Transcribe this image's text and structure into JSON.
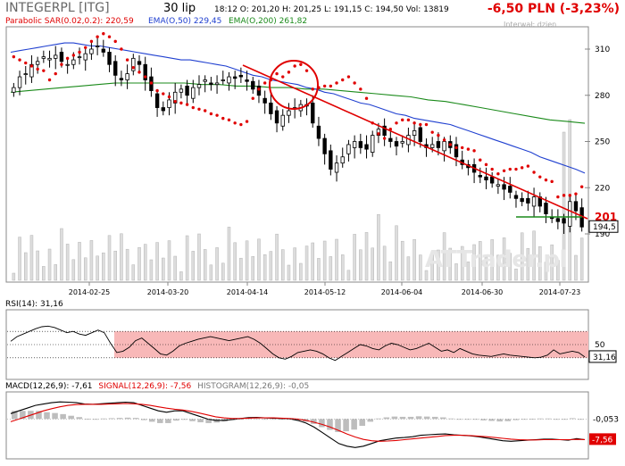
{
  "header": {
    "title": "INTEGERPL [ITG]",
    "date": "30 lip",
    "quote": "18:12  O: 201,20  H: 201,25  L: 191,15  C: 194,50  Vol: 13819",
    "change": "-6,50 PLN (-3,23%)"
  },
  "legend": {
    "sar": "Parabolic SAR(0.02,0.2): 220,59",
    "ema50": "EMA(O,50) 229,45",
    "ema200": "EMA(O,200) 261,82"
  },
  "interval_label": "Interwał: dzien",
  "watermark": "ATTrader.pl",
  "colors": {
    "price_candle": "#000000",
    "volume": "#b4b4b4",
    "sar": "#e00000",
    "ema50": "#2040d0",
    "ema200": "#1a8a1a",
    "trendline": "#e00000",
    "support": "#1a8a1a",
    "rsi_band": "#f8b8b8",
    "macd_signal": "#e00000",
    "macd_hist": "#bdbdbd"
  },
  "chart_data": [
    {
      "type": "candlestick",
      "title": "INTEGERPL [ITG]",
      "x_tick_labels": [
        "2014-02-25",
        "2014-03-20",
        "2014-04-14",
        "2014-05-12",
        "2014-06-04",
        "2014-06-30",
        "2014-07-23"
      ],
      "y_tick_labels": [
        "310",
        "280",
        "250",
        "220",
        "190"
      ],
      "ylim": [
        190,
        320
      ],
      "last_price_label": "194,5",
      "support_label": "201",
      "support_level": 201,
      "close": [
        285,
        292,
        294,
        300,
        302,
        305,
        304,
        306,
        302,
        300,
        303,
        305,
        307,
        310,
        312,
        308,
        300,
        293,
        290,
        294,
        304,
        300,
        290,
        283,
        272,
        270,
        277,
        282,
        284,
        280,
        285,
        287,
        290,
        287,
        288,
        290,
        292,
        291,
        292,
        289,
        284,
        280,
        275,
        268,
        262,
        267,
        270,
        272,
        274,
        273,
        262,
        252,
        242,
        232,
        236,
        240,
        248,
        250,
        246,
        245,
        254,
        258,
        254,
        250,
        247,
        250,
        254,
        257,
        250,
        246,
        248,
        246,
        250,
        246,
        240,
        235,
        233,
        230,
        227,
        225,
        223,
        222,
        219,
        217,
        213,
        211,
        210,
        214,
        208,
        203,
        200,
        198,
        197,
        211,
        205,
        194.5
      ],
      "sar": [
        305,
        303,
        301,
        299,
        297,
        296,
        290,
        294,
        300,
        304,
        306,
        308,
        311,
        315,
        318,
        320,
        318,
        315,
        310,
        303,
        298,
        295,
        292,
        288,
        283,
        281,
        279,
        276,
        275,
        274,
        272,
        271,
        270,
        268,
        267,
        265,
        264,
        262,
        261,
        263,
        278,
        284,
        288,
        290,
        294,
        292,
        295,
        299,
        300,
        296,
        284,
        285,
        286,
        286,
        288,
        290,
        292,
        288,
        284,
        278,
        262,
        255,
        252,
        258,
        262,
        264,
        264,
        262,
        261,
        261,
        256,
        254,
        251,
        248,
        246,
        246,
        245,
        244,
        238,
        235,
        232,
        229,
        231,
        232,
        232,
        233,
        234,
        230,
        227,
        225,
        224,
        214,
        215,
        215,
        216,
        220.59
      ],
      "ema50": [
        308,
        309,
        310,
        311,
        312,
        313,
        314,
        314,
        313,
        312,
        312,
        311,
        310,
        309,
        308,
        307,
        306,
        305,
        304,
        303,
        303,
        302,
        301,
        300,
        299,
        297,
        295,
        293,
        292,
        290,
        289,
        288,
        287,
        285,
        284,
        282,
        281,
        279,
        277,
        275,
        274,
        272,
        270,
        268,
        267,
        265,
        264,
        263,
        262,
        261,
        259,
        257,
        255,
        253,
        251,
        249,
        247,
        245,
        243,
        240,
        238,
        236,
        234,
        232,
        229.45
      ],
      "ema200": [
        282,
        283,
        284,
        285,
        286,
        287,
        288,
        288,
        288,
        288,
        288,
        287,
        287,
        286,
        286,
        285,
        285,
        284,
        284,
        283,
        282,
        281,
        280,
        279,
        277,
        276,
        274,
        272,
        270,
        268,
        266,
        264,
        263,
        261.82
      ],
      "volume_max": 29000
    },
    {
      "type": "line",
      "title": "RSI(14): 31,16",
      "y_tick_labels": [
        "50"
      ],
      "last_value_label": "31,16",
      "ylim": [
        0,
        100
      ],
      "band": [
        30,
        70
      ],
      "values": [
        55,
        62,
        66,
        70,
        74,
        77,
        78,
        76,
        72,
        68,
        70,
        66,
        64,
        68,
        72,
        68,
        52,
        38,
        40,
        46,
        56,
        60,
        52,
        44,
        36,
        34,
        40,
        48,
        52,
        55,
        58,
        60,
        62,
        60,
        58,
        56,
        58,
        60,
        62,
        58,
        52,
        44,
        36,
        30,
        28,
        32,
        38,
        40,
        42,
        40,
        36,
        30,
        26,
        32,
        38,
        44,
        50,
        48,
        44,
        42,
        48,
        52,
        50,
        46,
        42,
        44,
        48,
        52,
        46,
        40,
        42,
        38,
        44,
        40,
        36,
        34,
        33,
        32,
        34,
        36,
        34,
        33,
        32,
        31,
        30,
        31,
        34,
        42,
        36,
        38,
        40,
        38,
        31.16
      ]
    },
    {
      "type": "line",
      "title": "MACD(12,26,9): -7,61  SIGNAL(12,26,9): -7,56  HISTOGRAM(12,26,9): -0,05",
      "legend": [
        "MACD(12,26,9): -7,61",
        "SIGNAL(12,26,9): -7,56",
        "HISTOGRAM(12,26,9): -0,05"
      ],
      "y_tick_labels": [
        "-0,053"
      ],
      "last_value_label": "-7,56",
      "ylim": [
        -14,
        8
      ],
      "series": [
        {
          "name": "MACD(12,26,9): -7,61",
          "values": [
            2,
            3,
            4,
            5,
            5.5,
            6,
            6.3,
            6.2,
            6,
            5.5,
            5.4,
            5.6,
            5.8,
            6,
            6.2,
            6,
            5,
            4,
            3,
            2.5,
            3,
            3,
            2,
            1,
            0,
            -0.5,
            -0.5,
            -0.2,
            0.2,
            0.5,
            0.6,
            0.4,
            0.3,
            0.2,
            0.1,
            -0.5,
            -1.5,
            -3,
            -5,
            -7,
            -9,
            -10,
            -10.5,
            -10,
            -9,
            -8,
            -7.5,
            -7,
            -6.8,
            -6.5,
            -6,
            -5.8,
            -5.6,
            -5.5,
            -5.8,
            -6,
            -6.2,
            -6.5,
            -7,
            -7.5,
            -8,
            -8.2,
            -8,
            -7.8,
            -7.6,
            -7.4,
            -7.4,
            -7.6,
            -7.8,
            -7.2,
            -7.61
          ]
        },
        {
          "name": "SIGNAL(12,26,9): -7,56",
          "values": [
            -1,
            0,
            1,
            2,
            3,
            3.8,
            4.5,
            5,
            5.3,
            5.4,
            5.4,
            5.4,
            5.5,
            5.6,
            5.7,
            5.6,
            5.4,
            5,
            4.5,
            4,
            3.6,
            3.3,
            2.8,
            2.2,
            1.5,
            0.8,
            0.4,
            0.2,
            0.2,
            0.3,
            0.4,
            0.4,
            0.4,
            0.3,
            0.2,
            0,
            -0.5,
            -1.2,
            -2,
            -3,
            -4.2,
            -5.5,
            -6.6,
            -7.5,
            -8,
            -8.2,
            -8.1,
            -7.9,
            -7.6,
            -7.3,
            -7,
            -6.7,
            -6.4,
            -6.1,
            -6,
            -6,
            -6.1,
            -6.3,
            -6.5,
            -6.8,
            -7.1,
            -7.4,
            -7.6,
            -7.7,
            -7.7,
            -7.6,
            -7.6,
            -7.6,
            -7.6,
            -7.5,
            -7.56
          ]
        },
        {
          "name": "HISTOGRAM(12,26,9): -0,05",
          "values": [
            3,
            3,
            3,
            3,
            2.5,
            2.2,
            1.8,
            1.2,
            0.7,
            0.1,
            0,
            0.2,
            0.3,
            0.4,
            0.5,
            0.4,
            -0.4,
            -1,
            -1.5,
            -1.5,
            -0.6,
            -0.3,
            -0.8,
            -1.2,
            -1.5,
            -1.3,
            -0.9,
            -0.4,
            0,
            0.2,
            0.2,
            0,
            -0.1,
            -0.1,
            -0.1,
            -0.5,
            -1,
            -1.8,
            -3,
            -4,
            -4.8,
            -4.5,
            -3.9,
            -2.5,
            -1,
            0.2,
            0.6,
            0.9,
            0.8,
            0.8,
            1,
            0.9,
            0.8,
            0.6,
            0.2,
            0,
            -0.1,
            -0.2,
            -0.5,
            -0.7,
            -0.9,
            -0.8,
            -0.4,
            -0.1,
            0.1,
            0.2,
            0.2,
            0,
            -0.2,
            0.3,
            -0.05
          ]
        }
      ]
    }
  ]
}
